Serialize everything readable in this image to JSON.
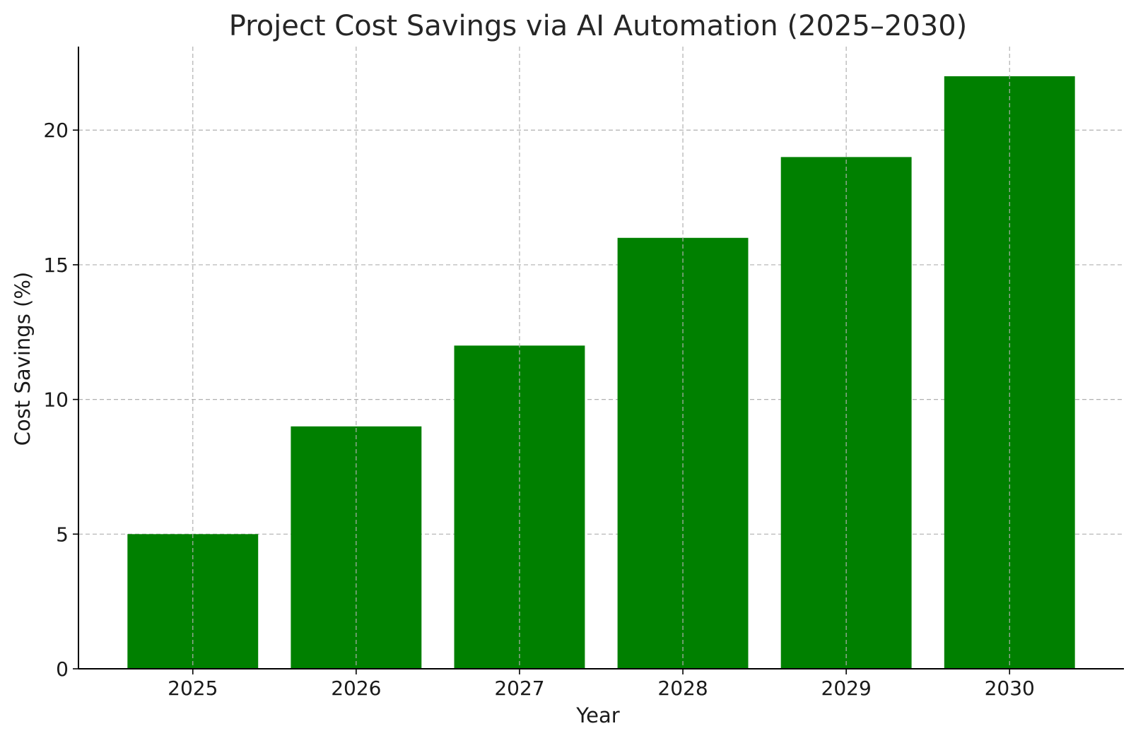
{
  "chart_data": {
    "type": "bar",
    "title": "Project Cost Savings via AI Automation (2025–2030)",
    "xlabel": "Year",
    "ylabel": "Cost Savings (%)",
    "categories": [
      "2025",
      "2026",
      "2027",
      "2028",
      "2029",
      "2030"
    ],
    "values": [
      5,
      9,
      12,
      16,
      19,
      22
    ],
    "ylim": [
      0,
      23.1
    ],
    "yticks": [
      "0",
      "5",
      "10",
      "15",
      "20"
    ],
    "grid": true,
    "bar_color": "#008000",
    "legend": "none"
  }
}
